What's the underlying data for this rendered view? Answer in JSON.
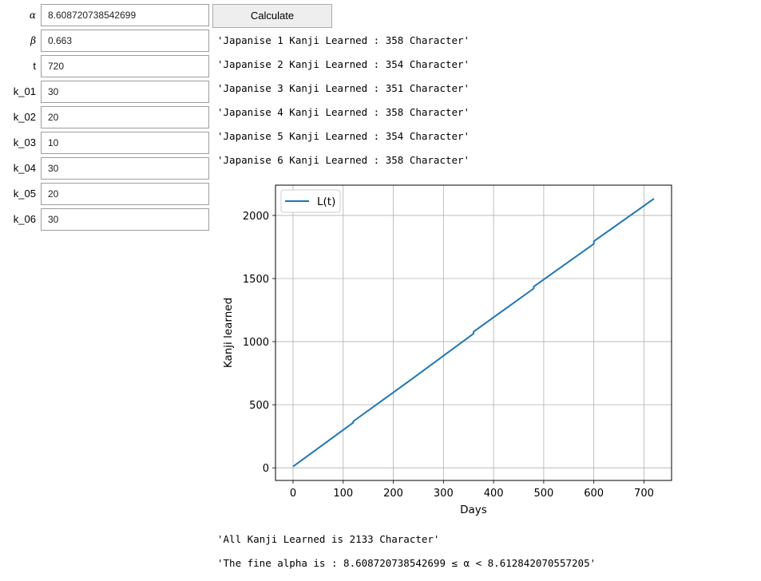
{
  "inputs": [
    {
      "label": "α",
      "value": "8.608720738542699"
    },
    {
      "label": "β",
      "value": "0.663"
    },
    {
      "label": "t",
      "value": "720"
    },
    {
      "label": "k_01",
      "value": "30"
    },
    {
      "label": "k_02",
      "value": "20"
    },
    {
      "label": "k_03",
      "value": "10"
    },
    {
      "label": "k_04",
      "value": "30"
    },
    {
      "label": "k_05",
      "value": "20"
    },
    {
      "label": "k_06",
      "value": "30"
    }
  ],
  "calculate_label": "Calculate",
  "outputs": [
    "'Japanise 1 Kanji Learned : 358 Character'",
    "'Japanise 2 Kanji Learned : 354 Character'",
    "'Japanise 3 Kanji Learned : 351 Character'",
    "'Japanise 4 Kanji Learned : 358 Character'",
    "'Japanise 5 Kanji Learned : 354 Character'",
    "'Japanise 6 Kanji Learned : 358 Character'"
  ],
  "summary": {
    "total": "'All Kanji Learned is 2133 Character'",
    "alpha_range": "'The fine alpha is : 8.608720738542699 ≤ α < 8.612842070557205'"
  },
  "colors": {
    "line": "#1f77b4",
    "grid": "#b0b0b0"
  },
  "chart_data": {
    "type": "line",
    "xlabel": "Days",
    "ylabel": "Kanji learned",
    "xlim": [
      -35,
      755
    ],
    "ylim": [
      -100,
      2240
    ],
    "xticks": [
      0,
      100,
      200,
      300,
      400,
      500,
      600,
      700
    ],
    "yticks": [
      0,
      500,
      1000,
      1500,
      2000
    ],
    "grid": true,
    "legend": "upper left",
    "series": [
      {
        "name": "L(t)",
        "x": [
          0,
          120,
          120,
          240,
          360,
          360,
          480,
          480,
          600,
          600,
          720
        ],
        "y": [
          10,
          358,
          368,
          712,
          1063,
          1078,
          1421,
          1436,
          1775,
          1795,
          2133
        ]
      }
    ]
  }
}
